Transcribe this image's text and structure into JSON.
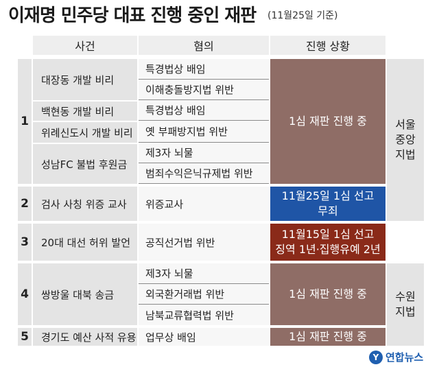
{
  "title": "이재명 민주당 대표 진행 중인 재판",
  "title_note": "(11월25일 기준)",
  "headers": {
    "case": "사건",
    "charges": "혐의",
    "status": "진행 상황"
  },
  "rows": [
    {
      "num": "1",
      "cases": [
        "대장동 개발 비리",
        "백현동 개발 비리",
        "위례신도시 개발 비리",
        "성남FC 불법 후원금"
      ],
      "charges": [
        "특경법상 배임",
        "이해충돌방지법 위반",
        "특경법상 배임",
        "옛 부패방지법 위반",
        "제3자 뇌물",
        "범죄수익은닉규제법 위반"
      ],
      "status": "1심 재판 진행 중"
    },
    {
      "num": "2",
      "cases": [
        "검사 사칭 위증 교사"
      ],
      "charges": [
        "위증교사"
      ],
      "status_lines": [
        "11월25일 1심 선고",
        "무죄"
      ]
    },
    {
      "num": "3",
      "cases": [
        "20대 대선 허위 발언"
      ],
      "charges": [
        "공직선거법 위반"
      ],
      "status_lines": [
        "11월15일 1심 선고",
        "징역 1년·집행유예 2년"
      ]
    },
    {
      "num": "4",
      "cases": [
        "쌍방울 대북 송금"
      ],
      "charges": [
        "제3자 뇌물",
        "외국환거래법 위반",
        "남북교류협력법 위반"
      ],
      "status": "1심 재판 진행 중"
    },
    {
      "num": "5",
      "cases": [
        "경기도 예산 사적 유용"
      ],
      "charges": [
        "업무상 배임"
      ],
      "status": "1심 재판 진행 중"
    }
  ],
  "courts": [
    [
      "서울",
      "중앙",
      "지법"
    ],
    [
      "수원",
      "지법"
    ]
  ],
  "colors": {
    "pending": "#8f6d66",
    "acquitted": "#1f55a6",
    "convicted": "#8a2a19"
  },
  "logo": {
    "icon": "yonhap-logo-icon",
    "text": "연합뉴스"
  }
}
